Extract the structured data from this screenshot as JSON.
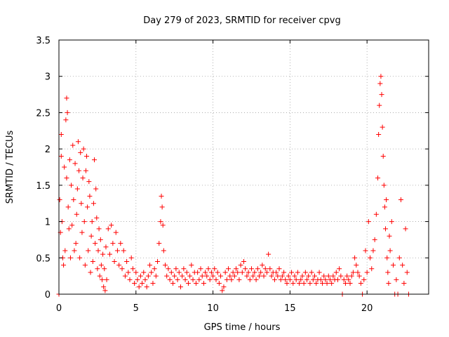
{
  "chart_data": {
    "type": "scatter",
    "title": "Day 279 of 2023, SRMTID for receiver cpvg",
    "xlabel": "GPS time / hours",
    "ylabel": "SRMTID / TECUs",
    "xlim": [
      0,
      24
    ],
    "ylim": [
      0,
      3.5
    ],
    "x_ticks": [
      0,
      5,
      10,
      15,
      20
    ],
    "y_ticks": [
      0,
      0.5,
      1,
      1.5,
      2,
      2.5,
      3,
      3.5
    ],
    "x_tick_labels": [
      "0",
      "5",
      "10",
      "15",
      "20"
    ],
    "y_tick_labels": [
      "0",
      "0.5",
      "1",
      "1.5",
      "2",
      "2.5",
      "3",
      "3.5"
    ],
    "grid": true,
    "marker": "+",
    "color": "#ff0000",
    "series": [
      {
        "name": "SRMTID",
        "points": [
          [
            0.0,
            0.0
          ],
          [
            0.05,
            1.3
          ],
          [
            0.1,
            0.85
          ],
          [
            0.15,
            2.2
          ],
          [
            0.15,
            1.9
          ],
          [
            0.2,
            1.0
          ],
          [
            0.25,
            0.5
          ],
          [
            0.3,
            0.4
          ],
          [
            0.35,
            1.75
          ],
          [
            0.4,
            0.6
          ],
          [
            0.45,
            2.4
          ],
          [
            0.5,
            2.7
          ],
          [
            0.5,
            1.6
          ],
          [
            0.55,
            2.5
          ],
          [
            0.6,
            1.2
          ],
          [
            0.65,
            0.9
          ],
          [
            0.7,
            1.85
          ],
          [
            0.75,
            0.5
          ],
          [
            0.8,
            1.5
          ],
          [
            0.85,
            0.95
          ],
          [
            0.9,
            2.05
          ],
          [
            0.95,
            1.3
          ],
          [
            1.0,
            0.6
          ],
          [
            1.05,
            1.8
          ],
          [
            1.1,
            0.7
          ],
          [
            1.15,
            1.1
          ],
          [
            1.2,
            1.45
          ],
          [
            1.25,
            2.1
          ],
          [
            1.3,
            1.7
          ],
          [
            1.35,
            0.5
          ],
          [
            1.4,
            1.95
          ],
          [
            1.45,
            1.25
          ],
          [
            1.5,
            0.85
          ],
          [
            1.55,
            1.6
          ],
          [
            1.6,
            2.0
          ],
          [
            1.65,
            1.0
          ],
          [
            1.7,
            0.4
          ],
          [
            1.75,
            1.7
          ],
          [
            1.8,
            1.9
          ],
          [
            1.85,
            1.2
          ],
          [
            1.9,
            0.6
          ],
          [
            1.95,
            1.55
          ],
          [
            2.0,
            1.35
          ],
          [
            2.05,
            0.3
          ],
          [
            2.1,
            0.8
          ],
          [
            2.15,
            1.0
          ],
          [
            2.2,
            0.45
          ],
          [
            2.25,
            1.25
          ],
          [
            2.3,
            1.85
          ],
          [
            2.35,
            0.7
          ],
          [
            2.4,
            1.45
          ],
          [
            2.45,
            1.05
          ],
          [
            2.5,
            0.35
          ],
          [
            2.55,
            0.6
          ],
          [
            2.6,
            0.9
          ],
          [
            2.65,
            0.25
          ],
          [
            2.7,
            0.75
          ],
          [
            2.75,
            0.4
          ],
          [
            2.8,
            0.2
          ],
          [
            2.85,
            0.55
          ],
          [
            2.9,
            0.1
          ],
          [
            2.95,
            0.35
          ],
          [
            3.0,
            0.05
          ],
          [
            3.05,
            0.65
          ],
          [
            3.1,
            0.2
          ],
          [
            3.2,
            0.9
          ],
          [
            3.3,
            0.55
          ],
          [
            3.4,
            0.95
          ],
          [
            3.5,
            0.7
          ],
          [
            3.6,
            0.45
          ],
          [
            3.7,
            0.85
          ],
          [
            3.8,
            0.6
          ],
          [
            3.9,
            0.4
          ],
          [
            4.0,
            0.7
          ],
          [
            4.1,
            0.35
          ],
          [
            4.2,
            0.6
          ],
          [
            4.3,
            0.25
          ],
          [
            4.4,
            0.45
          ],
          [
            4.5,
            0.3
          ],
          [
            4.6,
            0.2
          ],
          [
            4.7,
            0.5
          ],
          [
            4.8,
            0.35
          ],
          [
            4.9,
            0.15
          ],
          [
            5.0,
            0.3
          ],
          [
            5.1,
            0.2
          ],
          [
            5.2,
            0.1
          ],
          [
            5.3,
            0.25
          ],
          [
            5.4,
            0.15
          ],
          [
            5.5,
            0.3
          ],
          [
            5.6,
            0.2
          ],
          [
            5.7,
            0.1
          ],
          [
            5.8,
            0.25
          ],
          [
            5.9,
            0.4
          ],
          [
            6.0,
            0.3
          ],
          [
            6.1,
            0.15
          ],
          [
            6.2,
            0.35
          ],
          [
            6.3,
            0.25
          ],
          [
            6.4,
            0.45
          ],
          [
            6.5,
            0.7
          ],
          [
            6.6,
            1.0
          ],
          [
            6.65,
            1.35
          ],
          [
            6.7,
            1.2
          ],
          [
            6.75,
            0.95
          ],
          [
            6.8,
            0.6
          ],
          [
            6.9,
            0.4
          ],
          [
            7.0,
            0.25
          ],
          [
            7.1,
            0.35
          ],
          [
            7.2,
            0.2
          ],
          [
            7.3,
            0.3
          ],
          [
            7.4,
            0.15
          ],
          [
            7.5,
            0.25
          ],
          [
            7.6,
            0.35
          ],
          [
            7.7,
            0.2
          ],
          [
            7.8,
            0.3
          ],
          [
            7.9,
            0.1
          ],
          [
            8.0,
            0.25
          ],
          [
            8.1,
            0.35
          ],
          [
            8.2,
            0.2
          ],
          [
            8.3,
            0.3
          ],
          [
            8.4,
            0.15
          ],
          [
            8.5,
            0.25
          ],
          [
            8.6,
            0.4
          ],
          [
            8.7,
            0.2
          ],
          [
            8.8,
            0.3
          ],
          [
            8.9,
            0.15
          ],
          [
            9.0,
            0.3
          ],
          [
            9.1,
            0.2
          ],
          [
            9.2,
            0.35
          ],
          [
            9.3,
            0.25
          ],
          [
            9.4,
            0.15
          ],
          [
            9.5,
            0.3
          ],
          [
            9.6,
            0.25
          ],
          [
            9.7,
            0.35
          ],
          [
            9.8,
            0.2
          ],
          [
            9.9,
            0.3
          ],
          [
            10.0,
            0.25
          ],
          [
            10.1,
            0.35
          ],
          [
            10.2,
            0.2
          ],
          [
            10.3,
            0.3
          ],
          [
            10.4,
            0.15
          ],
          [
            10.5,
            0.25
          ],
          [
            10.6,
            0.05
          ],
          [
            10.7,
            0.1
          ],
          [
            10.8,
            0.3
          ],
          [
            10.9,
            0.2
          ],
          [
            11.0,
            0.35
          ],
          [
            11.1,
            0.25
          ],
          [
            11.2,
            0.2
          ],
          [
            11.3,
            0.3
          ],
          [
            11.4,
            0.25
          ],
          [
            11.5,
            0.35
          ],
          [
            11.6,
            0.3
          ],
          [
            11.7,
            0.2
          ],
          [
            11.8,
            0.4
          ],
          [
            11.9,
            0.3
          ],
          [
            12.0,
            0.45
          ],
          [
            12.1,
            0.35
          ],
          [
            12.2,
            0.25
          ],
          [
            12.3,
            0.3
          ],
          [
            12.4,
            0.2
          ],
          [
            12.5,
            0.35
          ],
          [
            12.6,
            0.25
          ],
          [
            12.7,
            0.3
          ],
          [
            12.8,
            0.2
          ],
          [
            12.9,
            0.35
          ],
          [
            13.0,
            0.25
          ],
          [
            13.1,
            0.3
          ],
          [
            13.2,
            0.4
          ],
          [
            13.3,
            0.25
          ],
          [
            13.4,
            0.35
          ],
          [
            13.5,
            0.3
          ],
          [
            13.6,
            0.55
          ],
          [
            13.7,
            0.35
          ],
          [
            13.8,
            0.25
          ],
          [
            13.9,
            0.3
          ],
          [
            14.0,
            0.2
          ],
          [
            14.1,
            0.3
          ],
          [
            14.2,
            0.25
          ],
          [
            14.3,
            0.35
          ],
          [
            14.4,
            0.2
          ],
          [
            14.5,
            0.25
          ],
          [
            14.6,
            0.3
          ],
          [
            14.7,
            0.2
          ],
          [
            14.8,
            0.15
          ],
          [
            14.9,
            0.25
          ],
          [
            15.0,
            0.2
          ],
          [
            15.1,
            0.3
          ],
          [
            15.2,
            0.15
          ],
          [
            15.3,
            0.25
          ],
          [
            15.4,
            0.2
          ],
          [
            15.5,
            0.3
          ],
          [
            15.6,
            0.15
          ],
          [
            15.7,
            0.2
          ],
          [
            15.8,
            0.25
          ],
          [
            15.9,
            0.15
          ],
          [
            16.0,
            0.3
          ],
          [
            16.1,
            0.2
          ],
          [
            16.2,
            0.25
          ],
          [
            16.3,
            0.15
          ],
          [
            16.4,
            0.3
          ],
          [
            16.5,
            0.2
          ],
          [
            16.6,
            0.25
          ],
          [
            16.7,
            0.15
          ],
          [
            16.8,
            0.2
          ],
          [
            16.9,
            0.3
          ],
          [
            17.0,
            0.2
          ],
          [
            17.1,
            0.15
          ],
          [
            17.2,
            0.25
          ],
          [
            17.3,
            0.2
          ],
          [
            17.4,
            0.15
          ],
          [
            17.5,
            0.25
          ],
          [
            17.6,
            0.2
          ],
          [
            17.7,
            0.15
          ],
          [
            17.8,
            0.25
          ],
          [
            17.9,
            0.2
          ],
          [
            18.0,
            0.3
          ],
          [
            18.1,
            0.2
          ],
          [
            18.2,
            0.35
          ],
          [
            18.3,
            0.25
          ],
          [
            18.4,
            0.0
          ],
          [
            18.5,
            0.2
          ],
          [
            18.6,
            0.15
          ],
          [
            18.7,
            0.25
          ],
          [
            18.8,
            0.2
          ],
          [
            18.9,
            0.15
          ],
          [
            19.0,
            0.25
          ],
          [
            19.1,
            0.3
          ],
          [
            19.2,
            0.5
          ],
          [
            19.3,
            0.4
          ],
          [
            19.4,
            0.3
          ],
          [
            19.5,
            0.25
          ],
          [
            19.6,
            0.15
          ],
          [
            19.7,
            0.0
          ],
          [
            19.8,
            0.2
          ],
          [
            19.9,
            0.6
          ],
          [
            20.0,
            0.3
          ],
          [
            20.1,
            1.0
          ],
          [
            20.2,
            0.5
          ],
          [
            20.3,
            0.35
          ],
          [
            20.4,
            0.6
          ],
          [
            20.5,
            0.75
          ],
          [
            20.6,
            1.1
          ],
          [
            20.7,
            1.6
          ],
          [
            20.75,
            2.2
          ],
          [
            20.8,
            2.6
          ],
          [
            20.85,
            2.9
          ],
          [
            20.9,
            3.0
          ],
          [
            20.95,
            2.75
          ],
          [
            21.0,
            2.3
          ],
          [
            21.05,
            1.9
          ],
          [
            21.1,
            1.5
          ],
          [
            21.15,
            1.2
          ],
          [
            21.2,
            0.9
          ],
          [
            21.25,
            1.3
          ],
          [
            21.3,
            0.5
          ],
          [
            21.35,
            0.3
          ],
          [
            21.4,
            0.15
          ],
          [
            21.45,
            0.8
          ],
          [
            21.5,
            0.6
          ],
          [
            21.6,
            1.0
          ],
          [
            21.7,
            0.4
          ],
          [
            21.8,
            0.0
          ],
          [
            21.9,
            0.2
          ],
          [
            22.0,
            0.0
          ],
          [
            22.1,
            0.5
          ],
          [
            22.2,
            1.3
          ],
          [
            22.3,
            0.4
          ],
          [
            22.4,
            0.15
          ],
          [
            22.5,
            0.9
          ],
          [
            22.6,
            0.3
          ],
          [
            22.7,
            0.0
          ]
        ]
      }
    ]
  }
}
